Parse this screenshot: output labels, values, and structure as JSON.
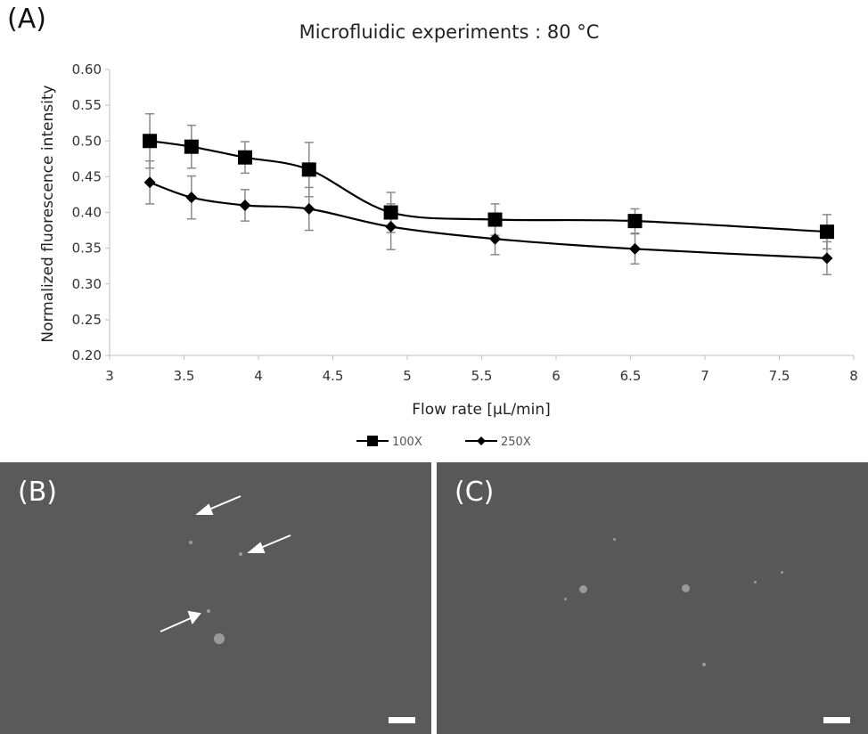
{
  "panels": {
    "a": "(A)",
    "b": "(B)",
    "c": "(C)"
  },
  "colors": {
    "line": "#000000",
    "error_bar": "#8a8a8a",
    "axis": "#bfbfbf",
    "micro_bg": "#5a5a5a"
  },
  "chart_data": {
    "type": "line",
    "title": "Microfluidic experiments : 80 °C",
    "xlabel": "Flow rate [µL/min]",
    "ylabel": "Normalized fluorescence intensity",
    "xlim": [
      3,
      8
    ],
    "ylim": [
      0.2,
      0.6
    ],
    "xticks": [
      "3",
      "3.5",
      "4",
      "4.5",
      "5",
      "5.5",
      "6",
      "6.5",
      "7",
      "7.5",
      "8"
    ],
    "yticks": [
      "0.20",
      "0.25",
      "0.30",
      "0.35",
      "0.40",
      "0.45",
      "0.50",
      "0.55",
      "0.60"
    ],
    "grid": false,
    "legend_position": "bottom",
    "series": [
      {
        "name": "100X",
        "marker": "square",
        "x": [
          3.27,
          3.55,
          3.91,
          4.34,
          4.89,
          5.59,
          6.53,
          7.82
        ],
        "y": [
          0.5,
          0.492,
          0.477,
          0.46,
          0.4,
          0.39,
          0.388,
          0.373
        ],
        "err": [
          0.038,
          0.03,
          0.022,
          0.038,
          0.028,
          0.022,
          0.017,
          0.024
        ]
      },
      {
        "name": "250X",
        "marker": "diamond",
        "x": [
          3.27,
          3.55,
          3.91,
          4.34,
          4.89,
          5.59,
          6.53,
          7.82
        ],
        "y": [
          0.442,
          0.421,
          0.41,
          0.405,
          0.38,
          0.363,
          0.349,
          0.336
        ],
        "err": [
          0.03,
          0.03,
          0.022,
          0.03,
          0.032,
          0.022,
          0.021,
          0.023
        ]
      }
    ]
  }
}
